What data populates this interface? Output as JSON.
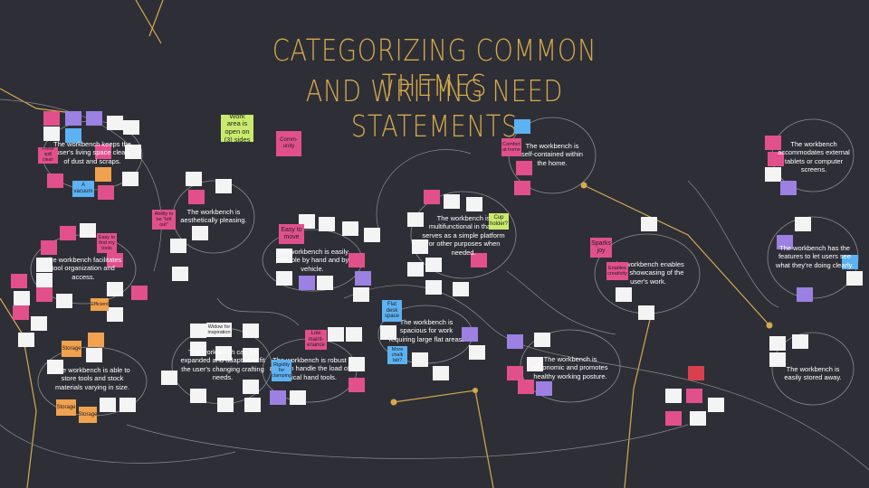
{
  "header": {
    "title_lines": [
      "CATEGORIZING COMMON THEMES",
      "AND WRITING NEED STATEMENTS"
    ]
  },
  "statements": [
    "The workbench keeps the user's living space clean of dust and scraps.",
    "The workbench facilitates tool organization and access.",
    "The workbench is able to store tools and stock materials varying in size.",
    "The workbench is aesthetically pleasing.",
    "The workbench can be expanded and adapted to fit the user's changing crafting needs.",
    "The workbench is easily portable by hand and by vehicle.",
    "The workbench is robust and can handle the load of typical hand tools.",
    "The workbench is multifunctional in that it serves as a simple platform for other purposes when needed.",
    "The workbench is self-contained within the home.",
    "The workbench is spacious for work requiring large flat areas.",
    "The workbench is ergonomic and promotes healthy working posture.",
    "The workbench enables open showcasing of the user's work.",
    "The workbench accommodates external tablets or computer screens.",
    "The workbench has the features to let users see what they're doing clearly.",
    "The workbench is easily stored away."
  ],
  "notes": [
    "Work area is open on (3) sides",
    "Comm-unity",
    "Finish spill clean",
    "A vacuum",
    "Easy to move",
    "Low maint-enance",
    "Rigidity for clamping",
    "Cup holder?",
    "Flat desk space",
    "More chalk lab?",
    "Sparks joy",
    "Enables creativity",
    "Storage",
    "Storage",
    "Storage",
    "Efficient",
    "Widow for inspiration",
    "Ability to be \"left out\"",
    "Comfort at home",
    "Easy to find my tools"
  ]
}
